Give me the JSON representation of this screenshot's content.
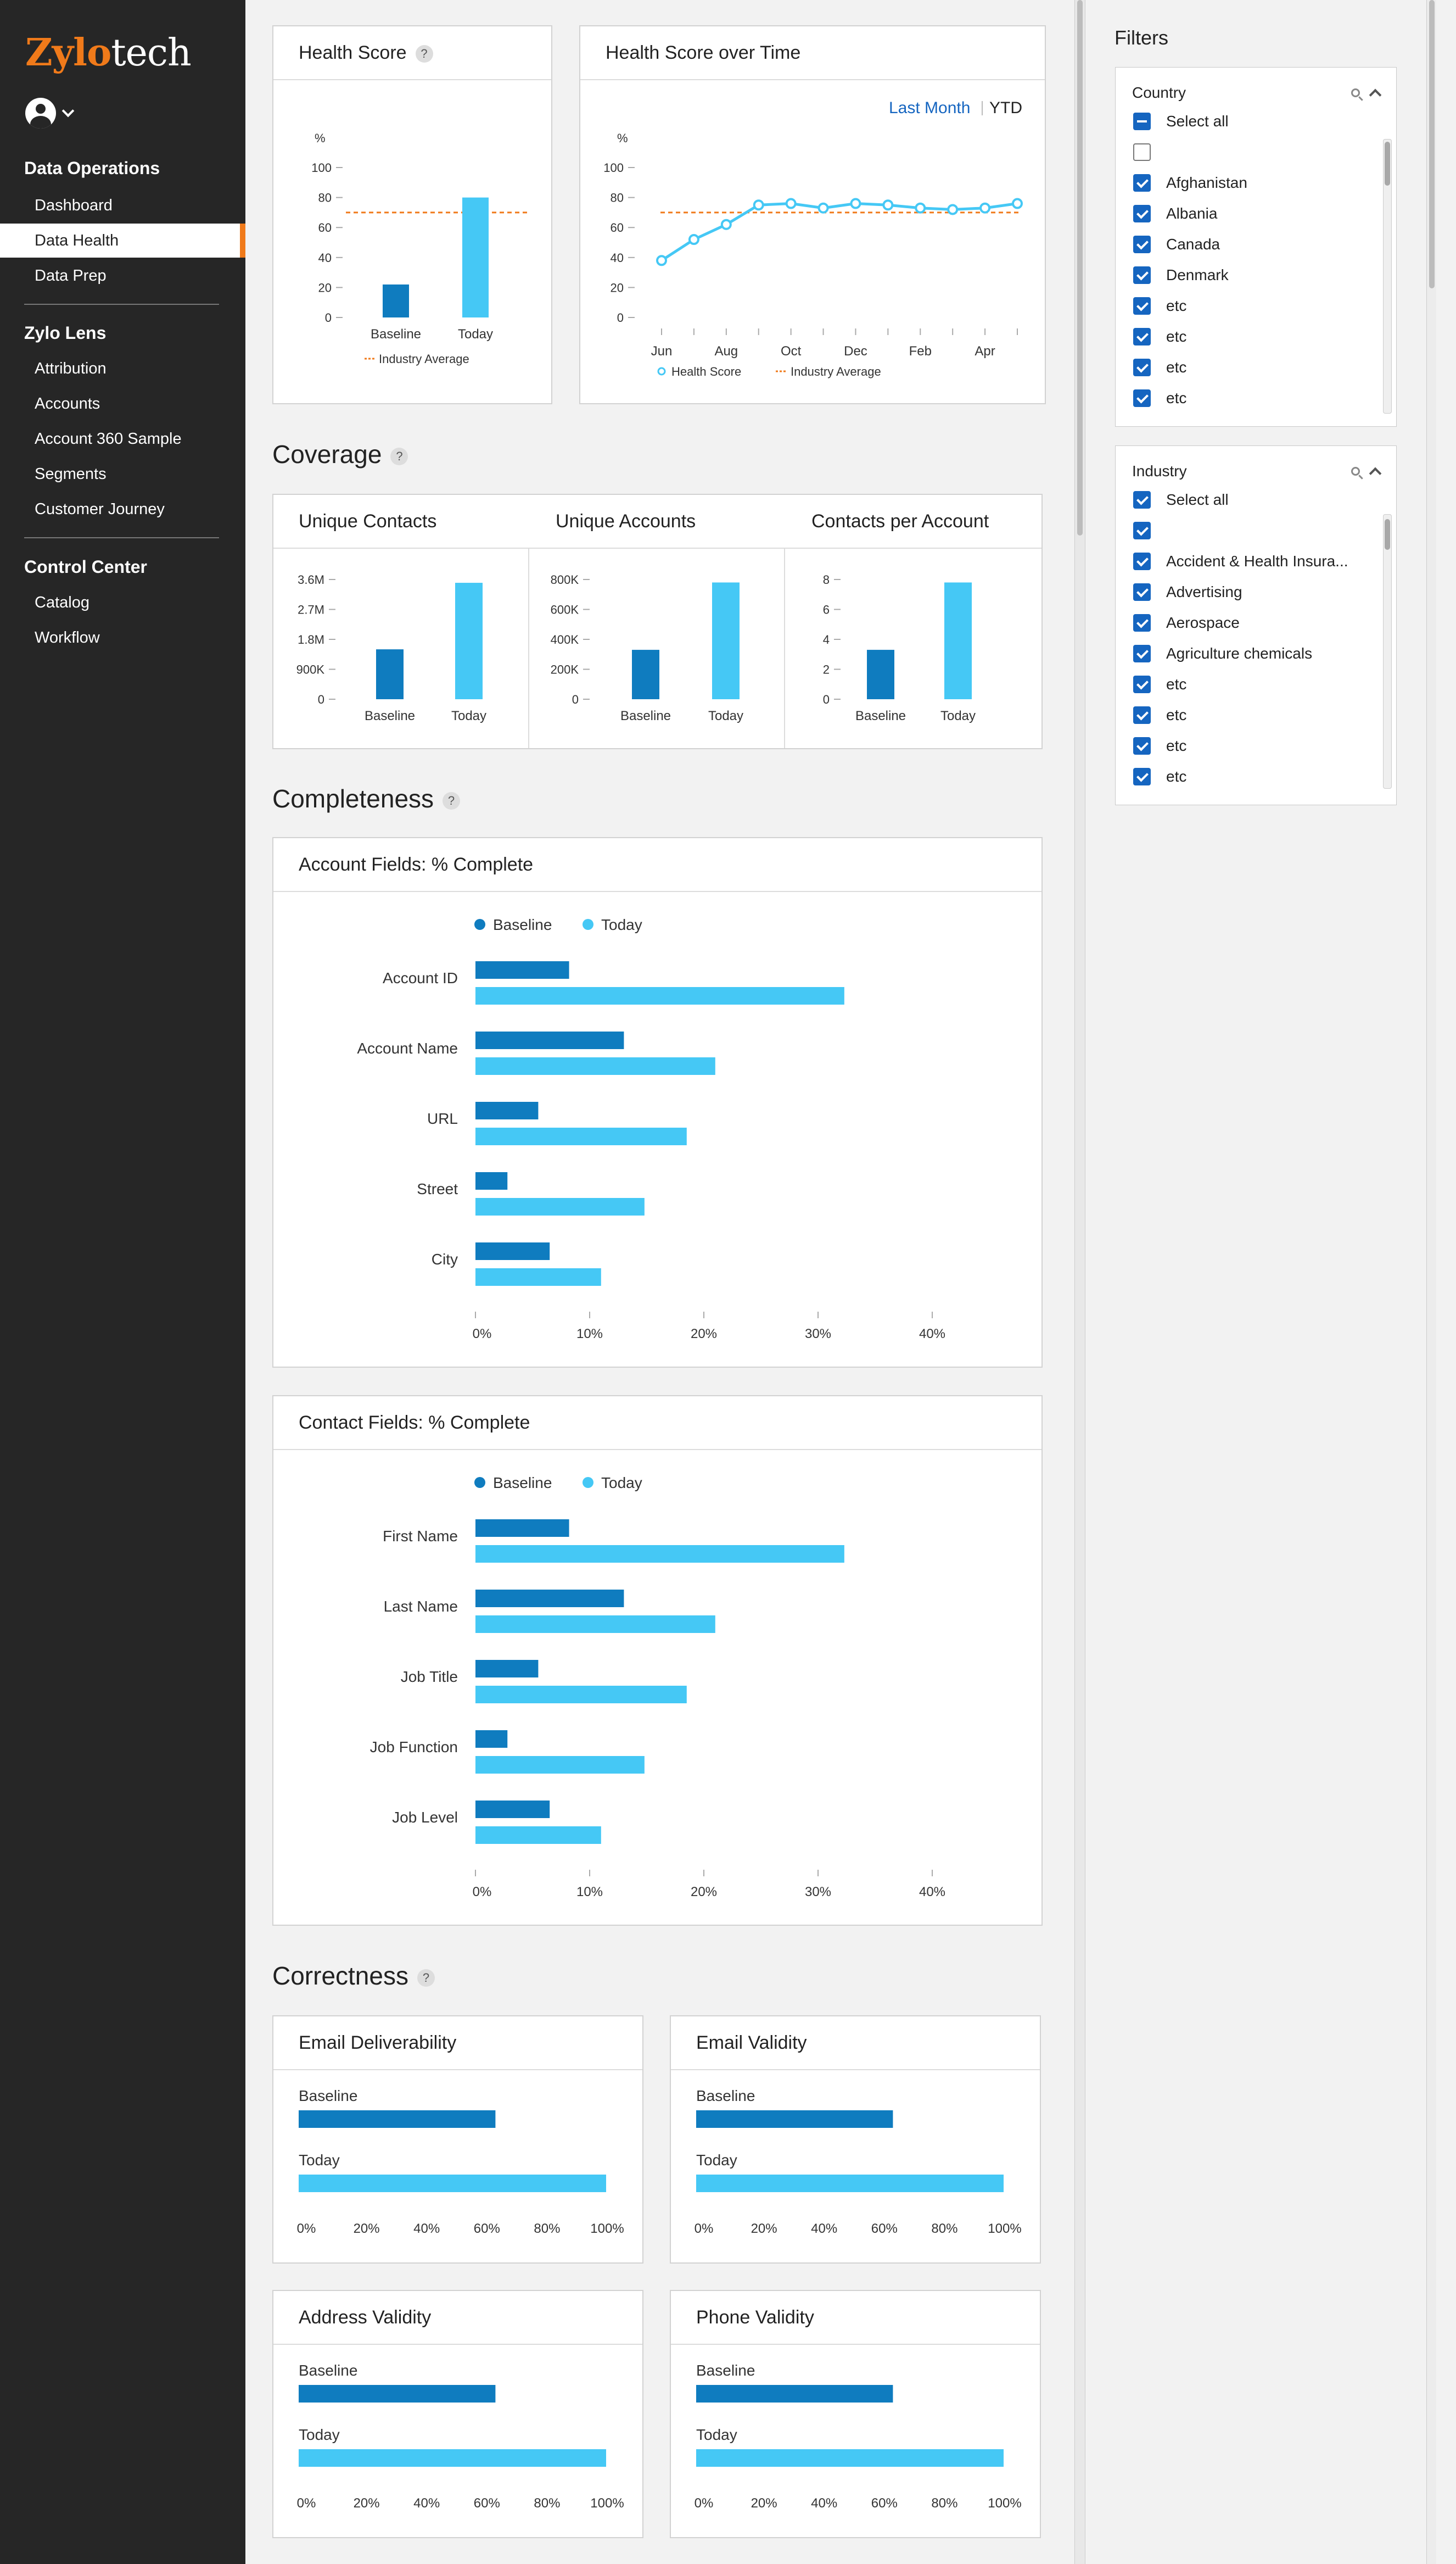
{
  "app": {
    "logo_part1": "Zylo",
    "logo_part2": "tech"
  },
  "sidebar": {
    "sections": [
      {
        "title": "Data Operations",
        "items": [
          "Dashboard",
          "Data Health",
          "Data Prep"
        ]
      },
      {
        "title": "Zylo Lens",
        "items": [
          "Attribution",
          "Accounts",
          "Account 360 Sample",
          "Segments",
          "Customer Journey"
        ]
      },
      {
        "title": "Control Center",
        "items": [
          "Catalog",
          "Workflow"
        ]
      }
    ],
    "active_item": "Data Health"
  },
  "filters": {
    "title": "Filters",
    "country": {
      "title": "Country",
      "items": [
        {
          "label": "Select all",
          "state": "indeterminate"
        },
        {
          "label": "",
          "state": "unchecked"
        },
        {
          "label": "Afghanistan",
          "state": "checked"
        },
        {
          "label": "Albania",
          "state": "checked"
        },
        {
          "label": "Canada",
          "state": "checked"
        },
        {
          "label": "Denmark",
          "state": "checked"
        },
        {
          "label": "etc",
          "state": "checked"
        },
        {
          "label": "etc",
          "state": "checked"
        },
        {
          "label": "etc",
          "state": "checked"
        },
        {
          "label": "etc",
          "state": "checked"
        }
      ]
    },
    "industry": {
      "title": "Industry",
      "items": [
        {
          "label": "Select all",
          "state": "checked"
        },
        {
          "label": "",
          "state": "checked"
        },
        {
          "label": "Accident & Health Insura...",
          "state": "checked"
        },
        {
          "label": "Advertising",
          "state": "checked"
        },
        {
          "label": "Aerospace",
          "state": "checked"
        },
        {
          "label": "Agriculture chemicals",
          "state": "checked"
        },
        {
          "label": "etc",
          "state": "checked"
        },
        {
          "label": "etc",
          "state": "checked"
        },
        {
          "label": "etc",
          "state": "checked"
        },
        {
          "label": "etc",
          "state": "checked"
        }
      ]
    }
  },
  "sections": {
    "coverage": "Coverage",
    "completeness": "Completeness",
    "correctness": "Correctness",
    "help": "?"
  },
  "colors": {
    "baseline": "#0f7cbf",
    "today": "#45c8f5",
    "industry": "#f07a1a",
    "accent": "#f07a1a",
    "link": "#1565c0"
  },
  "chart_data": [
    {
      "id": "health_score",
      "type": "bar",
      "title": "Health Score",
      "ylabel": "%",
      "categories": [
        "Baseline",
        "Today"
      ],
      "values": [
        22,
        80
      ],
      "ylim": [
        0,
        100
      ],
      "yticks": [
        "0",
        "20",
        "40",
        "60",
        "80",
        "100"
      ],
      "reference_line": {
        "name": "Industry Average",
        "value": 70
      }
    },
    {
      "id": "health_over_time",
      "type": "line",
      "title": "Health Score over Time",
      "ylabel": "%",
      "ylim": [
        0,
        100
      ],
      "yticks": [
        "0",
        "20",
        "40",
        "60",
        "80",
        "100"
      ],
      "x_labels": [
        "Jun",
        "Aug",
        "Oct",
        "Dec",
        "Feb",
        "Apr"
      ],
      "series": [
        {
          "name": "Health Score",
          "values": [
            38,
            52,
            62,
            75,
            76,
            73,
            76,
            75,
            73,
            72,
            73,
            76
          ]
        }
      ],
      "reference_line": {
        "name": "Industry Average",
        "value": 70
      },
      "range_options": [
        "Last Month",
        "YTD"
      ],
      "active_range": "YTD"
    },
    {
      "id": "unique_contacts",
      "type": "bar",
      "title": "Unique Contacts",
      "categories": [
        "Baseline",
        "Today"
      ],
      "values": [
        1.5,
        3.5
      ],
      "ylim": [
        0,
        3.6
      ],
      "yticks": [
        "0",
        "900K",
        "1.8M",
        "2.7M",
        "3.6M"
      ]
    },
    {
      "id": "unique_accounts",
      "type": "bar",
      "title": "Unique Accounts",
      "categories": [
        "Baseline",
        "Today"
      ],
      "values": [
        330,
        780
      ],
      "ylim": [
        0,
        800
      ],
      "yticks": [
        "0",
        "200K",
        "400K",
        "600K",
        "800K"
      ]
    },
    {
      "id": "contacts_per_account",
      "type": "bar",
      "title": "Contacts per Account",
      "categories": [
        "Baseline",
        "Today"
      ],
      "values": [
        3.3,
        7.8
      ],
      "ylim": [
        0,
        8
      ],
      "yticks": [
        "0",
        "2",
        "4",
        "6",
        "8"
      ]
    },
    {
      "id": "account_fields",
      "type": "bar",
      "orientation": "horizontal",
      "title": "Account Fields: % Complete",
      "categories": [
        "Account ID",
        "Account Name",
        "URL",
        "Street",
        "City"
      ],
      "series": [
        {
          "name": "Baseline",
          "values": [
            8.2,
            13,
            5.5,
            2.8,
            6.5
          ]
        },
        {
          "name": "Today",
          "values": [
            32.3,
            21,
            18.5,
            14.8,
            11
          ]
        }
      ],
      "xlim": [
        0,
        40
      ],
      "xticks": [
        "0%",
        "10%",
        "20%",
        "30%",
        "40%"
      ]
    },
    {
      "id": "contact_fields",
      "type": "bar",
      "orientation": "horizontal",
      "title": "Contact Fields: % Complete",
      "categories": [
        "First Name",
        "Last Name",
        "Job Title",
        "Job Function",
        "Job Level"
      ],
      "series": [
        {
          "name": "Baseline",
          "values": [
            8.2,
            13,
            5.5,
            2.8,
            6.5
          ]
        },
        {
          "name": "Today",
          "values": [
            32.3,
            21,
            18.5,
            14.8,
            11
          ]
        }
      ],
      "xlim": [
        0,
        40
      ],
      "xticks": [
        "0%",
        "10%",
        "20%",
        "30%",
        "40%"
      ]
    },
    {
      "id": "email_deliverability",
      "type": "bar",
      "orientation": "horizontal",
      "title": "Email Deliverability",
      "categories": [
        "Baseline",
        "Today"
      ],
      "values": [
        64,
        100
      ],
      "xlim": [
        0,
        100
      ],
      "xticks": [
        "0%",
        "20%",
        "40%",
        "60%",
        "80%",
        "100%"
      ]
    },
    {
      "id": "email_validity",
      "type": "bar",
      "orientation": "horizontal",
      "title": "Email Validity",
      "categories": [
        "Baseline",
        "Today"
      ],
      "values": [
        64,
        100
      ],
      "xlim": [
        0,
        100
      ],
      "xticks": [
        "0%",
        "20%",
        "40%",
        "60%",
        "80%",
        "100%"
      ]
    },
    {
      "id": "address_validity",
      "type": "bar",
      "orientation": "horizontal",
      "title": "Address Validity",
      "categories": [
        "Baseline",
        "Today"
      ],
      "values": [
        64,
        100
      ],
      "xlim": [
        0,
        100
      ],
      "xticks": [
        "0%",
        "20%",
        "40%",
        "60%",
        "80%",
        "100%"
      ]
    },
    {
      "id": "phone_validity",
      "type": "bar",
      "orientation": "horizontal",
      "title": "Phone Validity",
      "categories": [
        "Baseline",
        "Today"
      ],
      "values": [
        64,
        100
      ],
      "xlim": [
        0,
        100
      ],
      "xticks": [
        "0%",
        "20%",
        "40%",
        "60%",
        "80%",
        "100%"
      ]
    }
  ]
}
